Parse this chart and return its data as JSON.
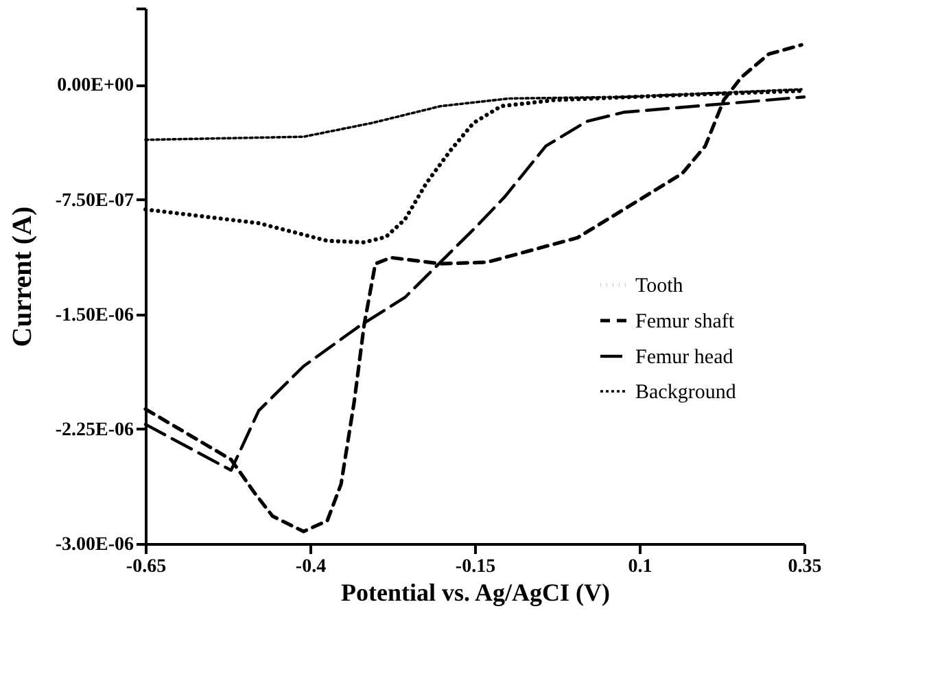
{
  "chart_data": {
    "type": "line",
    "xlabel": "Potential vs. Ag/AgCI (V)",
    "ylabel": "Current (A)",
    "xlim": [
      -0.65,
      0.35
    ],
    "xticks": [
      -0.65,
      -0.4,
      -0.15,
      0.1,
      0.35
    ],
    "ylim": [
      -3e-06,
      5e-07
    ],
    "yticks": [
      {
        "value": -3e-06,
        "label": "-3.00E-06"
      },
      {
        "value": -2.25e-06,
        "label": "-2.25E-06"
      },
      {
        "value": -1.5e-06,
        "label": "-1.50E-06"
      },
      {
        "value": -7.5e-07,
        "label": "-7.50E-07"
      },
      {
        "value": 0,
        "label": "0.00E+00"
      },
      {
        "value": 5e-07,
        "label": null
      }
    ],
    "grid": false,
    "legend": "right",
    "marker": "none",
    "series": [
      {
        "name": "Tooth",
        "color": "#000000",
        "line_style": "dotted",
        "x": [
          -0.65,
          -0.478,
          -0.374,
          -0.318,
          -0.285,
          -0.256,
          -0.223,
          -0.187,
          -0.152,
          -0.11,
          -0.028,
          0.145,
          0.346
        ],
        "values": [
          -8.15e-07,
          -9.05e-07,
          -1.02e-06,
          -1.03e-06,
          -9.95e-07,
          -8.8e-07,
          -6.4e-07,
          -4.3e-07,
          -2.5e-07,
          -1.4e-07,
          -1e-07,
          -7e-08,
          -4e-08
        ]
      },
      {
        "name": "Femur shaft",
        "color": "#000000",
        "line_style": "dashed",
        "x": [
          -0.65,
          -0.52,
          -0.484,
          -0.457,
          -0.41,
          -0.374,
          -0.353,
          -0.333,
          -0.318,
          -0.301,
          -0.277,
          -0.202,
          -0.131,
          0.006,
          0.097,
          0.165,
          0.2,
          0.228,
          0.255,
          0.296,
          0.346
        ],
        "values": [
          -2.12e-06,
          -2.45e-06,
          -2.67e-06,
          -2.82e-06,
          -2.92e-06,
          -2.85e-06,
          -2.61e-06,
          -2.07e-06,
          -1.57e-06,
          -1.17e-06,
          -1.13e-06,
          -1.17e-06,
          -1.16e-06,
          -1e-06,
          -7.6e-07,
          -5.8e-07,
          -4e-07,
          -1e-07,
          5e-08,
          2e-07,
          2.6e-07
        ]
      },
      {
        "name": "Femur head",
        "color": "#000000",
        "line_style": "dashed",
        "x": [
          -0.65,
          -0.52,
          -0.478,
          -0.41,
          -0.326,
          -0.256,
          -0.146,
          -0.104,
          -0.042,
          0.02,
          0.076,
          0.35
        ],
        "values": [
          -2.22e-06,
          -2.52e-06,
          -2.13e-06,
          -1.84e-06,
          -1.58e-06,
          -1.39e-06,
          -9.2e-07,
          -7.3e-07,
          -4e-07,
          -2.4e-07,
          -1.8e-07,
          -8e-08
        ]
      },
      {
        "name": "Background",
        "color": "#000000",
        "line_style": "dotted",
        "x": [
          -0.65,
          -0.41,
          -0.306,
          -0.202,
          -0.098,
          0.076,
          0.346
        ],
        "values": [
          -3.6e-07,
          -3.4e-07,
          -2.5e-07,
          -1.4e-07,
          -9e-08,
          -8e-08,
          -3e-08
        ]
      }
    ]
  }
}
